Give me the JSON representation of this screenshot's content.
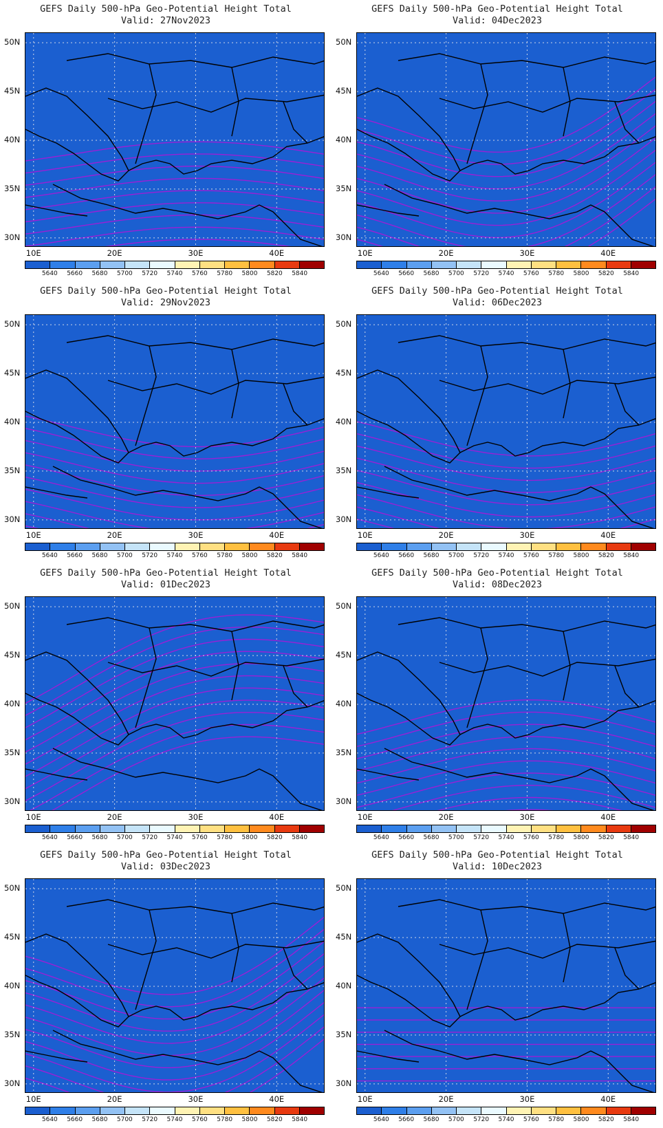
{
  "title_prefix": "GEFS Daily 500-hPa Geo-Potential Height Total",
  "lat_labels": [
    "50N",
    "45N",
    "40N",
    "35N",
    "30N"
  ],
  "lon_labels": [
    "10E",
    "20E",
    "30E",
    "40E"
  ],
  "legend": {
    "levels": [
      "5640",
      "5660",
      "5680",
      "5700",
      "5720",
      "5740",
      "5760",
      "5780",
      "5800",
      "5820",
      "5840"
    ],
    "colors": [
      "#1b5fd0",
      "#2f7fe8",
      "#5c9ff0",
      "#93c2f4",
      "#c5e4f8",
      "#eafaff",
      "#fff3b4",
      "#ffe082",
      "#ffc040",
      "#ff8a1e",
      "#e83a10",
      "#a00000"
    ]
  },
  "panels": [
    {
      "valid": "Valid: 27Nov2023",
      "shift": 0.0,
      "amp": 0.5
    },
    {
      "valid": "Valid: 04Dec2023",
      "shift": 1.2,
      "amp": -1.8
    },
    {
      "valid": "Valid: 29Nov2023",
      "shift": 0.9,
      "amp": -0.8
    },
    {
      "valid": "Valid: 06Dec2023",
      "shift": 0.2,
      "amp": -0.9
    },
    {
      "valid": "Valid: 01Dec2023",
      "shift": 3.2,
      "amp": 1.2
    },
    {
      "valid": "Valid: 08Dec2023",
      "shift": -0.4,
      "amp": 0.9
    },
    {
      "valid": "Valid: 03Dec2023",
      "shift": 1.8,
      "amp": -1.9
    },
    {
      "valid": "Valid: 10Dec2023",
      "shift": -0.8,
      "amp": 0.0
    }
  ]
}
